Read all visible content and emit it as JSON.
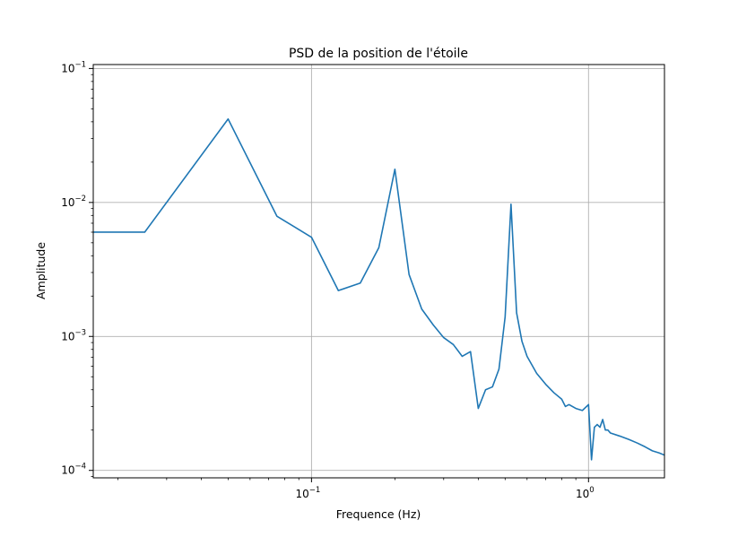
{
  "chart_data": {
    "type": "line",
    "title": "PSD de la position de l'étoile",
    "xlabel": "Frequence (Hz)",
    "ylabel": "Amplitude",
    "xscale": "log",
    "yscale": "log",
    "xlim": [
      0.0163,
      1.88
    ],
    "ylim": [
      8.8e-05,
      0.107
    ],
    "grid": true,
    "line_color": "#1f77b4",
    "x_ticks": [
      {
        "value": 0.1,
        "base": "10",
        "exp": "−1"
      },
      {
        "value": 1,
        "base": "10",
        "exp": "0"
      }
    ],
    "y_ticks": [
      {
        "value": 0.0001,
        "base": "10",
        "exp": "−4"
      },
      {
        "value": 0.001,
        "base": "10",
        "exp": "−3"
      },
      {
        "value": 0.01,
        "base": "10",
        "exp": "−2"
      },
      {
        "value": 0.1,
        "base": "10",
        "exp": "−1"
      }
    ],
    "series": [
      {
        "x": [
          0.0163,
          0.025,
          0.05,
          0.075,
          0.1,
          0.125,
          0.15,
          0.175,
          0.2,
          0.225,
          0.25,
          0.275,
          0.3,
          0.325,
          0.35,
          0.375,
          0.4,
          0.425,
          0.45,
          0.475,
          0.5,
          0.525,
          0.55,
          0.575,
          0.6,
          0.65,
          0.7,
          0.75,
          0.8,
          0.825,
          0.85,
          0.9,
          0.95,
          1.0,
          1.025,
          1.05,
          1.075,
          1.1,
          1.125,
          1.15,
          1.175,
          1.2,
          1.3,
          1.4,
          1.5,
          1.6,
          1.7,
          1.8,
          1.88
        ],
        "y": [
          0.006,
          0.006,
          0.042,
          0.0079,
          0.0055,
          0.0022,
          0.0025,
          0.0046,
          0.0177,
          0.0029,
          0.0016,
          0.00122,
          0.00098,
          0.00087,
          0.00071,
          0.00077,
          0.00029,
          0.0004,
          0.00042,
          0.00057,
          0.0014,
          0.0097,
          0.0015,
          0.00092,
          0.00071,
          0.00053,
          0.00044,
          0.00038,
          0.00034,
          0.0003,
          0.00031,
          0.00029,
          0.00028,
          0.00031,
          0.00012,
          0.00021,
          0.00022,
          0.00021,
          0.00024,
          0.0002,
          0.0002,
          0.00019,
          0.00018,
          0.00017,
          0.00016,
          0.00015,
          0.00014,
          0.000135,
          0.00013
        ]
      }
    ]
  }
}
